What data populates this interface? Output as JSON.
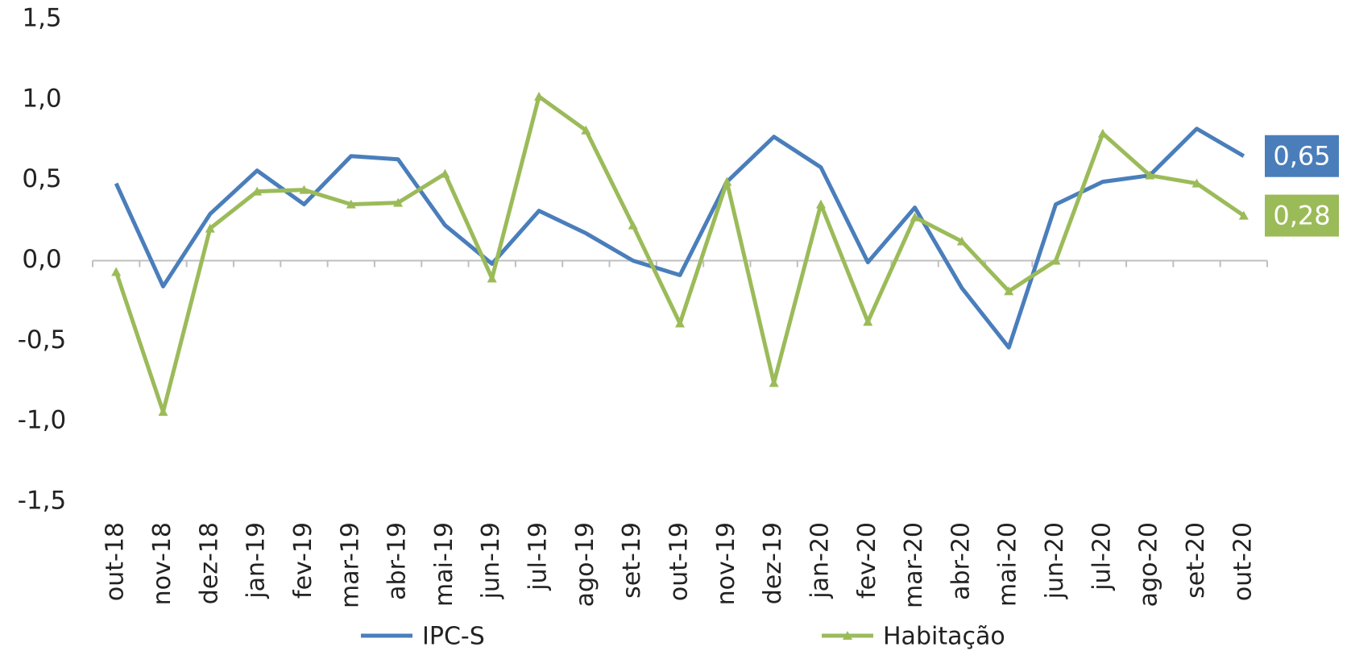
{
  "chart_data": {
    "type": "line",
    "categories": [
      "out-18",
      "nov-18",
      "dez-18",
      "jan-19",
      "fev-19",
      "mar-19",
      "abr-19",
      "mai-19",
      "jun-19",
      "jul-19",
      "ago-19",
      "set-19",
      "out-19",
      "nov-19",
      "dez-19",
      "jan-20",
      "fev-20",
      "mar-20",
      "abr-20",
      "mai-20",
      "jun-20",
      "jul-20",
      "ago-20",
      "set-20",
      "out-20"
    ],
    "series": [
      {
        "name": "IPC-S",
        "color": "#4a7ebb",
        "values": [
          0.48,
          -0.16,
          0.29,
          0.56,
          0.35,
          0.65,
          0.63,
          0.22,
          -0.02,
          0.31,
          0.17,
          0.0,
          -0.09,
          0.49,
          0.77,
          0.58,
          -0.01,
          0.33,
          -0.17,
          -0.54,
          0.35,
          0.49,
          0.53,
          0.82,
          0.65
        ],
        "value_labels": [
          null,
          null,
          null,
          null,
          null,
          null,
          null,
          null,
          null,
          null,
          null,
          null,
          null,
          null,
          null,
          null,
          null,
          null,
          null,
          null,
          null,
          null,
          null,
          null,
          "0,65"
        ]
      },
      {
        "name": "Habitação",
        "color": "#9bbb59",
        "marker": "triangle",
        "values": [
          -0.07,
          -0.94,
          0.2,
          0.43,
          0.44,
          0.35,
          0.36,
          0.54,
          -0.11,
          1.02,
          0.81,
          0.22,
          -0.39,
          0.49,
          -0.76,
          0.35,
          -0.38,
          0.27,
          0.12,
          -0.19,
          0.0,
          0.79,
          0.53,
          0.48,
          0.28
        ],
        "value_labels": [
          null,
          null,
          null,
          null,
          null,
          null,
          null,
          null,
          null,
          null,
          null,
          null,
          null,
          null,
          null,
          null,
          null,
          null,
          null,
          null,
          null,
          null,
          null,
          null,
          "0,28"
        ]
      }
    ],
    "ylim": [
      -1.5,
      1.5
    ],
    "yticks": [
      {
        "value": -1.5,
        "label": "-1,5"
      },
      {
        "value": -1,
        "label": "-1,0"
      },
      {
        "value": -0.5,
        "label": "-0,5"
      },
      {
        "value": 0,
        "label": "0,0"
      },
      {
        "value": 0.5,
        "label": "0,5"
      },
      {
        "value": 1,
        "label": "1,0"
      },
      {
        "value": 1.5,
        "label": "1,5"
      }
    ],
    "grid": false,
    "legend": "bottom"
  }
}
